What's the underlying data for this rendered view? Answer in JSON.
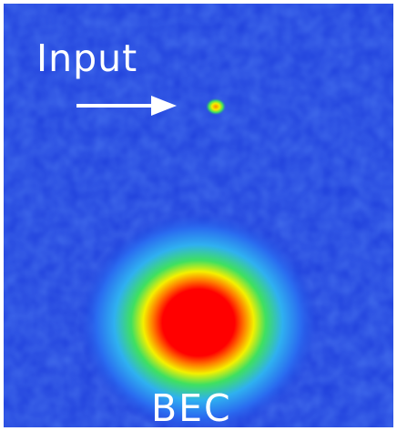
{
  "image": {
    "labels": {
      "input": "Input",
      "bec": "BEC"
    },
    "colors": {
      "background": "#1f3fdc",
      "halo": "#2fb0f0",
      "ring_green": "#3fe060",
      "ring_yellow": "#f4f000",
      "ring_orange": "#ff7a00",
      "core": "#ff0000",
      "text": "#ffffff"
    },
    "icons": {
      "arrow": "right-arrow-icon"
    }
  }
}
